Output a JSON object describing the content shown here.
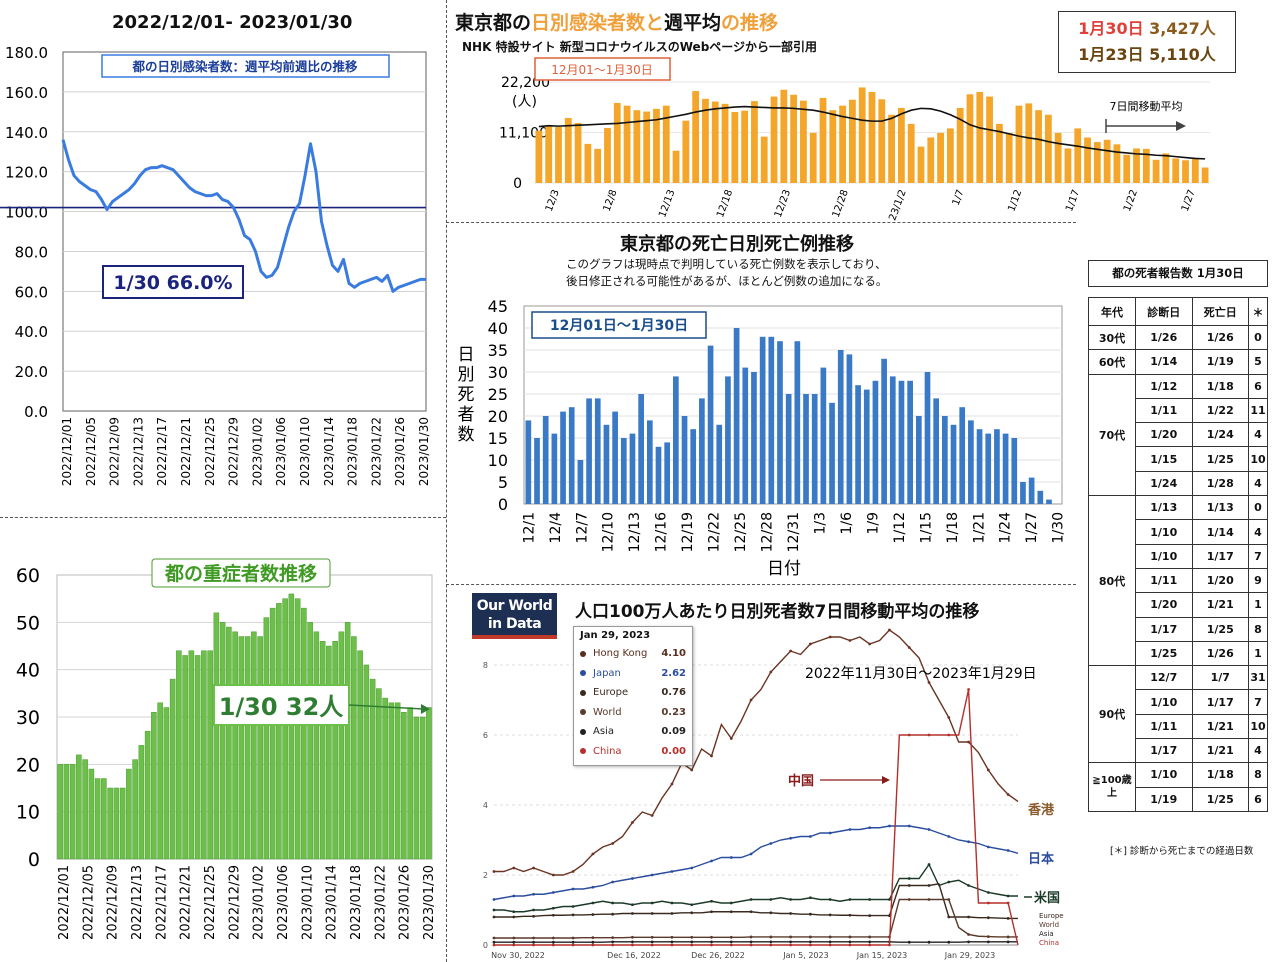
{
  "panel_a": {
    "date_range": "2022/12/01- 2023/01/30",
    "callout": "1/30 66.0%",
    "chart_data": {
      "type": "line",
      "title": "都の日別感染者数：週平均前週比の推移",
      "ylim": [
        0,
        180
      ],
      "y_ticks": [
        "0.0",
        "20.0",
        "40.0",
        "60.0",
        "80.0",
        "100.0",
        "120.0",
        "140.0",
        "160.0",
        "180.0"
      ],
      "x_tick_labels": [
        "2022/12/01",
        "2022/12/05",
        "2022/12/09",
        "2022/12/13",
        "2022/12/17",
        "2022/12/21",
        "2022/12/25",
        "2022/12/29",
        "2023/01/02",
        "2023/01/06",
        "2023/01/10",
        "2023/01/14",
        "2023/01/18",
        "2023/01/22",
        "2023/01/26",
        "2023/01/30"
      ],
      "reference_line": 102,
      "values": [
        136,
        126,
        118,
        115,
        113,
        111,
        110,
        106,
        101,
        105,
        107,
        109,
        111,
        114,
        118,
        121,
        122,
        122,
        123,
        122,
        121,
        118,
        115,
        112,
        110,
        109,
        108,
        108,
        109,
        106,
        105,
        102,
        96,
        88,
        86,
        80,
        70,
        67,
        68,
        72,
        82,
        92,
        100,
        104,
        118,
        134,
        120,
        95,
        83,
        73,
        70,
        76,
        64,
        62,
        64,
        65,
        66,
        67,
        65,
        68,
        60,
        62,
        63,
        64,
        65,
        66,
        66
      ]
    }
  },
  "panel_b": {
    "callout": "1/30 32人",
    "chart_data": {
      "type": "bar",
      "title": "都の重症者数推移",
      "ylim": [
        0,
        60
      ],
      "y_ticks": [
        "0",
        "10",
        "20",
        "30",
        "40",
        "50",
        "60"
      ],
      "x_tick_labels": [
        "2022/12/01",
        "2022/12/05",
        "2022/12/09",
        "2022/12/13",
        "2022/12/17",
        "2022/12/21",
        "2022/12/25",
        "2022/12/29",
        "2023/01/02",
        "2023/01/06",
        "2023/01/10",
        "2023/01/14",
        "2023/01/18",
        "2023/01/22",
        "2023/01/26",
        "2023/01/30"
      ],
      "values": [
        20,
        20,
        20,
        22,
        21,
        19,
        17,
        17,
        15,
        15,
        15,
        19,
        21,
        24,
        27,
        31,
        33,
        32,
        38,
        44,
        43,
        44,
        43,
        44,
        44,
        52,
        50,
        49,
        48,
        47,
        47,
        48,
        47,
        51,
        53,
        54,
        55,
        56,
        55,
        53,
        50,
        48,
        46,
        45,
        46,
        48,
        50,
        47,
        44,
        41,
        38,
        36,
        34,
        33,
        33,
        31,
        32,
        30,
        30,
        32
      ]
    }
  },
  "panel_c": {
    "title_pre": "東京都の",
    "title_hl": "日別感染者数と",
    "title_mid": "週平均",
    "title_post": "の推移",
    "source": "NHK 特設サイト 新型コロナウイルスのWebページから一部引用",
    "range_label": "12月01〜1月30日",
    "y_unit": "(人)",
    "legend_moving_avg": "7日間移動平均",
    "stat1_day": "1月30日",
    "stat1_value": "3,427人",
    "stat2": "1月23日 5,110人",
    "chart_data": {
      "type": "bar",
      "series_line": "7日間移動平均",
      "ylim": [
        0,
        22200
      ],
      "y_ticks": [
        "0",
        "11,100",
        "22,200"
      ],
      "x_tick_labels": [
        "12/3",
        "12/8",
        "12/13",
        "12/18",
        "12/23",
        "12/28",
        "23/1/2",
        "1/7",
        "1/12",
        "1/17",
        "1/22",
        "1/27"
      ],
      "values": [
        11500,
        12600,
        12300,
        14300,
        13200,
        8600,
        7500,
        12100,
        17600,
        17000,
        16000,
        15700,
        16300,
        17000,
        7100,
        13700,
        20200,
        18500,
        17900,
        17400,
        15600,
        15900,
        18000,
        10200,
        19000,
        20500,
        19400,
        18100,
        11000,
        18700,
        16000,
        17000,
        18300,
        21000,
        20000,
        18400,
        15000,
        16500,
        13000,
        8000,
        10000,
        11000,
        12000,
        16500,
        19500,
        20000,
        19000,
        13000,
        11000,
        17000,
        17500,
        16000,
        15000,
        11000,
        7600,
        12000,
        10000,
        9000,
        9500,
        8500,
        6200,
        7600,
        7500,
        5100,
        6500,
        5400,
        5000,
        5400,
        3400
      ],
      "moving_avg": [
        12400,
        12600,
        12500,
        12600,
        12700,
        12800,
        12900,
        13000,
        13100,
        13300,
        13500,
        13700,
        13900,
        14300,
        14700,
        15100,
        15600,
        16000,
        16300,
        16500,
        16700,
        16800,
        16700,
        16600,
        16500,
        16500,
        16400,
        16200,
        16000,
        15600,
        15100,
        14600,
        14200,
        13800,
        13600,
        13600,
        14200,
        15200,
        16000,
        16400,
        16300,
        15800,
        15000,
        14000,
        12800,
        12100,
        11700,
        11300,
        10800,
        10300,
        9900,
        9600,
        9100,
        8700,
        8400,
        8100,
        7700,
        7400,
        7100,
        6800,
        6600,
        6400,
        6300,
        6100,
        6000,
        5800,
        5600,
        5400,
        5300
      ]
    }
  },
  "panel_d": {
    "title": "東京都の死亡日別死亡例推移",
    "note_line1": "このグラフは現時点で判明している死亡例数を表示しており、",
    "note_line2": "後日修正される可能性があるが、ほとんど例数の追加になる。",
    "range_label": "12月01日〜1月30日",
    "y_label": "日別死者数",
    "x_label": "日付",
    "chart_data": {
      "type": "bar",
      "ylim": [
        0,
        45
      ],
      "y_ticks": [
        "0",
        "5",
        "10",
        "15",
        "20",
        "25",
        "30",
        "35",
        "40",
        "45"
      ],
      "x_tick_labels": [
        "12/1",
        "12/4",
        "12/7",
        "12/10",
        "12/13",
        "12/16",
        "12/19",
        "12/22",
        "12/25",
        "12/28",
        "12/31",
        "1/3",
        "1/6",
        "1/9",
        "1/12",
        "1/15",
        "1/18",
        "1/21",
        "1/24",
        "1/27",
        "1/30"
      ],
      "values": [
        19,
        15,
        20,
        16,
        21,
        22,
        10,
        24,
        24,
        18,
        21,
        15,
        16,
        25,
        19,
        13,
        14,
        29,
        20,
        17,
        24,
        36,
        18,
        29,
        40,
        31,
        30,
        38,
        38,
        37,
        25,
        37,
        25,
        25,
        31,
        23,
        35,
        34,
        27,
        26,
        28,
        33,
        29,
        28,
        28,
        20,
        30,
        24,
        20,
        18,
        22,
        19,
        17,
        16,
        17,
        16,
        15,
        5,
        6,
        3,
        1,
        0
      ]
    }
  },
  "panel_e": {
    "logo_line1": "Our World",
    "logo_line2": "in Data",
    "title": "人口100万人あたり日別死者数7日間移動平均の推移",
    "range_text": "2022年11月30日〜2023年1月29日",
    "tooltip": {
      "date": "Jan 29, 2023",
      "rows": [
        {
          "label": "Hong Kong",
          "value": "4.10",
          "color": "#5a2e1e"
        },
        {
          "label": "Japan",
          "value": "2.62",
          "color": "#2a4d9e"
        },
        {
          "label": "Europe",
          "value": "0.76",
          "color": "#3b2a20"
        },
        {
          "label": "World",
          "value": "0.23",
          "color": "#5a3a2a"
        },
        {
          "label": "Asia",
          "value": "0.09",
          "color": "#222222"
        },
        {
          "label": "China",
          "value": "0.00",
          "color": "#b5302a"
        }
      ]
    },
    "annotations": {
      "china": "中国",
      "hongkong": "香港",
      "japan": "日本",
      "usa": "米国"
    },
    "end_labels": [
      "Europe",
      "World",
      "Asia",
      "China"
    ],
    "chart_data": {
      "type": "line",
      "ylim": [
        0,
        9
      ],
      "y_ticks": [
        "0",
        "2",
        "4",
        "6",
        "8"
      ],
      "x_tick_labels": [
        "Nov 30, 2022",
        "Dec 16, 2022",
        "Dec 26, 2022",
        "Jan 5, 2023",
        "Jan 15, 2023",
        "Jan 29, 2023"
      ],
      "series": [
        {
          "name": "Hong Kong",
          "color": "#6b3322",
          "values": [
            2.1,
            2.1,
            2.2,
            2.1,
            2.2,
            2.1,
            2.0,
            2.0,
            2.1,
            2.3,
            2.6,
            2.8,
            2.9,
            3.1,
            3.5,
            3.8,
            3.7,
            4.2,
            4.6,
            5.2,
            5.0,
            5.6,
            5.4,
            6.3,
            5.9,
            6.4,
            7.0,
            7.3,
            7.8,
            8.1,
            8.4,
            8.3,
            8.6,
            8.7,
            8.8,
            8.8,
            8.7,
            8.8,
            8.6,
            8.7,
            9.0,
            8.8,
            8.5,
            8.2,
            7.5,
            7.0,
            6.5,
            5.8,
            5.8,
            5.5,
            5.0,
            4.6,
            4.3,
            4.1
          ]
        },
        {
          "name": "Japan",
          "color": "#2a4d9e",
          "values": [
            1.3,
            1.35,
            1.4,
            1.4,
            1.45,
            1.45,
            1.5,
            1.55,
            1.6,
            1.6,
            1.65,
            1.7,
            1.8,
            1.85,
            1.9,
            1.95,
            2.0,
            2.05,
            2.1,
            2.15,
            2.2,
            2.3,
            2.4,
            2.5,
            2.5,
            2.5,
            2.6,
            2.8,
            2.9,
            3.0,
            3.05,
            3.1,
            3.1,
            3.2,
            3.2,
            3.25,
            3.3,
            3.3,
            3.35,
            3.35,
            3.4,
            3.4,
            3.4,
            3.35,
            3.3,
            3.2,
            3.1,
            3.0,
            2.95,
            2.9,
            2.8,
            2.75,
            2.7,
            2.62
          ]
        },
        {
          "name": "United States",
          "color": "#1b3a2a",
          "values": [
            1.0,
            1.0,
            0.95,
            0.95,
            1.0,
            1.0,
            1.05,
            1.1,
            1.1,
            1.15,
            1.2,
            1.25,
            1.2,
            1.2,
            1.15,
            1.2,
            1.2,
            1.25,
            1.2,
            1.2,
            1.15,
            1.2,
            1.25,
            1.2,
            1.2,
            1.25,
            1.3,
            1.3,
            1.3,
            1.35,
            1.3,
            1.3,
            1.35,
            1.3,
            1.3,
            1.25,
            1.3,
            1.3,
            1.3,
            1.3,
            1.3,
            1.9,
            1.9,
            1.9,
            2.3,
            1.7,
            1.8,
            1.85,
            1.7,
            1.6,
            1.5,
            1.45,
            1.4,
            1.4
          ]
        },
        {
          "name": "Europe",
          "color": "#3b2a20",
          "values": [
            0.8,
            0.8,
            0.8,
            0.82,
            0.82,
            0.84,
            0.85,
            0.85,
            0.86,
            0.86,
            0.87,
            0.88,
            0.88,
            0.9,
            0.9,
            0.9,
            0.9,
            0.9,
            0.9,
            0.92,
            0.92,
            0.92,
            0.95,
            0.95,
            0.95,
            0.95,
            0.95,
            0.92,
            0.92,
            0.9,
            0.9,
            0.88,
            0.88,
            0.86,
            0.86,
            0.85,
            0.85,
            0.84,
            0.84,
            0.84,
            0.84,
            1.7,
            1.7,
            1.7,
            1.7,
            1.75,
            0.8,
            0.8,
            0.8,
            0.78,
            0.78,
            0.77,
            0.76,
            0.76
          ]
        },
        {
          "name": "World",
          "color": "#5a3a2a",
          "values": [
            0.2,
            0.2,
            0.2,
            0.2,
            0.2,
            0.2,
            0.2,
            0.2,
            0.2,
            0.21,
            0.21,
            0.21,
            0.21,
            0.21,
            0.22,
            0.22,
            0.22,
            0.22,
            0.22,
            0.22,
            0.22,
            0.22,
            0.22,
            0.22,
            0.22,
            0.22,
            0.23,
            0.23,
            0.23,
            0.23,
            0.23,
            0.23,
            0.23,
            0.23,
            0.23,
            0.23,
            0.23,
            0.23,
            0.23,
            0.23,
            0.23,
            1.3,
            1.3,
            1.3,
            1.3,
            1.3,
            1.3,
            0.5,
            0.3,
            0.25,
            0.24,
            0.23,
            0.23,
            0.23
          ]
        },
        {
          "name": "Asia",
          "color": "#222222",
          "values": [
            0.08,
            0.08,
            0.08,
            0.08,
            0.08,
            0.08,
            0.08,
            0.08,
            0.08,
            0.08,
            0.08,
            0.08,
            0.09,
            0.09,
            0.09,
            0.09,
            0.09,
            0.09,
            0.09,
            0.09,
            0.09,
            0.09,
            0.09,
            0.09,
            0.09,
            0.09,
            0.09,
            0.09,
            0.09,
            0.09,
            0.09,
            0.09,
            0.09,
            0.09,
            0.09,
            0.09,
            0.09,
            0.09,
            0.09,
            0.09,
            0.09,
            0.08,
            0.08,
            0.08,
            0.08,
            0.08,
            0.08,
            0.08,
            0.09,
            0.09,
            0.09,
            0.09,
            0.09,
            0.09
          ]
        },
        {
          "name": "China",
          "color": "#b5302a",
          "values": [
            0,
            0,
            0,
            0,
            0,
            0,
            0,
            0,
            0,
            0,
            0,
            0,
            0,
            0,
            0,
            0,
            0,
            0,
            0,
            0,
            0,
            0,
            0,
            0,
            0,
            0,
            0,
            0,
            0,
            0,
            0,
            0,
            0,
            0,
            0,
            0,
            0,
            0,
            0,
            0,
            0,
            6.0,
            6.0,
            6.0,
            6.0,
            6.0,
            6.0,
            6.0,
            7.3,
            1.2,
            1.2,
            1.2,
            1.2,
            0
          ]
        }
      ]
    }
  },
  "table": {
    "title": "都の死者報告数 1月30日",
    "headers": [
      "年代",
      "診断日",
      "死亡日",
      "＊"
    ],
    "footnote": "[＊] 診断から死亡までの経過日数",
    "groups": [
      {
        "age": "30代",
        "rows": [
          [
            "1/26",
            "1/26",
            "0"
          ]
        ]
      },
      {
        "age": "60代",
        "rows": [
          [
            "1/14",
            "1/19",
            "5"
          ]
        ]
      },
      {
        "age": "70代",
        "rows": [
          [
            "1/12",
            "1/18",
            "6"
          ],
          [
            "1/11",
            "1/22",
            "11"
          ],
          [
            "1/20",
            "1/24",
            "4"
          ],
          [
            "1/15",
            "1/25",
            "10"
          ],
          [
            "1/24",
            "1/28",
            "4"
          ]
        ]
      },
      {
        "age": "80代",
        "rows": [
          [
            "1/13",
            "1/13",
            "0"
          ],
          [
            "1/10",
            "1/14",
            "4"
          ],
          [
            "1/10",
            "1/17",
            "7"
          ],
          [
            "1/11",
            "1/20",
            "9"
          ],
          [
            "1/20",
            "1/21",
            "1"
          ],
          [
            "1/17",
            "1/25",
            "8"
          ],
          [
            "1/25",
            "1/26",
            "1"
          ]
        ]
      },
      {
        "age": "90代",
        "rows": [
          [
            "12/7",
            "1/7",
            "31"
          ],
          [
            "1/10",
            "1/17",
            "7"
          ],
          [
            "1/11",
            "1/21",
            "10"
          ],
          [
            "1/17",
            "1/21",
            "4"
          ]
        ]
      },
      {
        "age": "≧100歳上",
        "rows": [
          [
            "1/10",
            "1/18",
            "8"
          ],
          [
            "1/19",
            "1/25",
            "6"
          ]
        ]
      }
    ]
  }
}
